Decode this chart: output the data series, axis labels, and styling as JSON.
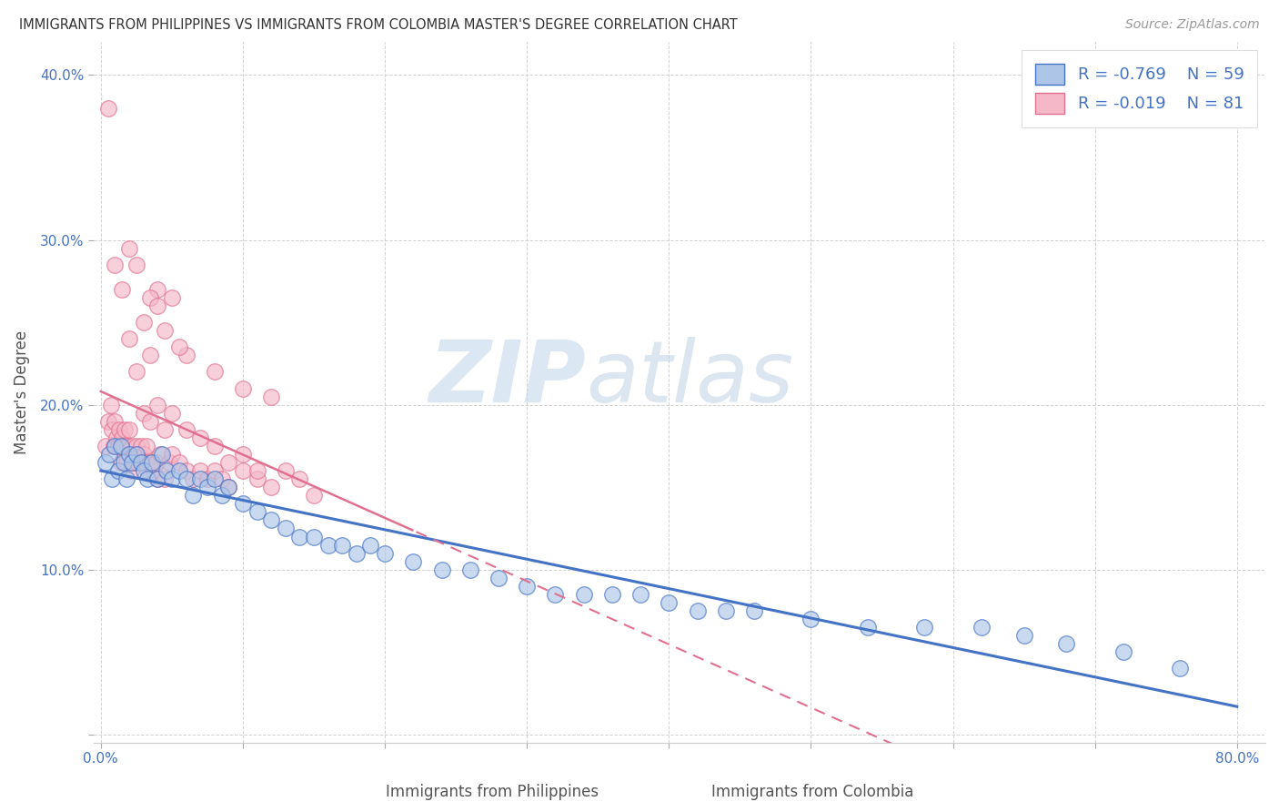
{
  "title": "IMMIGRANTS FROM PHILIPPINES VS IMMIGRANTS FROM COLOMBIA MASTER'S DEGREE CORRELATION CHART",
  "source": "Source: ZipAtlas.com",
  "xlabel_philippines": "Immigrants from Philippines",
  "xlabel_colombia": "Immigrants from Colombia",
  "ylabel": "Master's Degree",
  "xlim": [
    -0.005,
    0.82
  ],
  "ylim": [
    -0.005,
    0.42
  ],
  "xticks": [
    0.0,
    0.1,
    0.2,
    0.3,
    0.4,
    0.5,
    0.6,
    0.7,
    0.8
  ],
  "yticks": [
    0.0,
    0.1,
    0.2,
    0.3,
    0.4
  ],
  "ytick_labels": [
    "",
    "10.0%",
    "20.0%",
    "30.0%",
    "40.0%"
  ],
  "xtick_labels": [
    "0.0%",
    "",
    "",
    "",
    "",
    "",
    "",
    "",
    "80.0%"
  ],
  "legend_R1": "-0.769",
  "legend_N1": "59",
  "legend_R2": "-0.019",
  "legend_N2": "81",
  "color_philippines": "#adc6e8",
  "color_colombia": "#f4b8c8",
  "color_line_philippines": "#4472c4",
  "color_line_colombia": "#e07090",
  "watermark_zip": "ZIP",
  "watermark_atlas": "atlas",
  "philippines_x": [
    0.003,
    0.006,
    0.008,
    0.01,
    0.012,
    0.014,
    0.016,
    0.018,
    0.02,
    0.022,
    0.025,
    0.028,
    0.03,
    0.033,
    0.036,
    0.04,
    0.043,
    0.046,
    0.05,
    0.055,
    0.06,
    0.065,
    0.07,
    0.075,
    0.08,
    0.085,
    0.09,
    0.1,
    0.11,
    0.12,
    0.13,
    0.14,
    0.15,
    0.16,
    0.17,
    0.18,
    0.19,
    0.2,
    0.22,
    0.24,
    0.26,
    0.28,
    0.3,
    0.32,
    0.34,
    0.36,
    0.38,
    0.4,
    0.42,
    0.44,
    0.46,
    0.5,
    0.54,
    0.58,
    0.62,
    0.65,
    0.68,
    0.72,
    0.76
  ],
  "philippines_y": [
    0.165,
    0.17,
    0.155,
    0.175,
    0.16,
    0.175,
    0.165,
    0.155,
    0.17,
    0.165,
    0.17,
    0.165,
    0.16,
    0.155,
    0.165,
    0.155,
    0.17,
    0.16,
    0.155,
    0.16,
    0.155,
    0.145,
    0.155,
    0.15,
    0.155,
    0.145,
    0.15,
    0.14,
    0.135,
    0.13,
    0.125,
    0.12,
    0.12,
    0.115,
    0.115,
    0.11,
    0.115,
    0.11,
    0.105,
    0.1,
    0.1,
    0.095,
    0.09,
    0.085,
    0.085,
    0.085,
    0.085,
    0.08,
    0.075,
    0.075,
    0.075,
    0.07,
    0.065,
    0.065,
    0.065,
    0.06,
    0.055,
    0.05,
    0.04
  ],
  "colombia_x": [
    0.003,
    0.005,
    0.007,
    0.008,
    0.009,
    0.01,
    0.011,
    0.012,
    0.013,
    0.014,
    0.015,
    0.016,
    0.017,
    0.018,
    0.019,
    0.02,
    0.021,
    0.022,
    0.023,
    0.024,
    0.025,
    0.026,
    0.027,
    0.028,
    0.029,
    0.03,
    0.031,
    0.032,
    0.033,
    0.035,
    0.037,
    0.039,
    0.04,
    0.042,
    0.045,
    0.048,
    0.05,
    0.055,
    0.06,
    0.065,
    0.07,
    0.075,
    0.08,
    0.085,
    0.09,
    0.1,
    0.11,
    0.12,
    0.13,
    0.14,
    0.15,
    0.02,
    0.025,
    0.03,
    0.035,
    0.04,
    0.06,
    0.08,
    0.1,
    0.12,
    0.035,
    0.04,
    0.045,
    0.05,
    0.055,
    0.02,
    0.025,
    0.015,
    0.01,
    0.005,
    0.03,
    0.035,
    0.04,
    0.045,
    0.05,
    0.06,
    0.07,
    0.08,
    0.09,
    0.1,
    0.11
  ],
  "colombia_y": [
    0.175,
    0.19,
    0.2,
    0.185,
    0.175,
    0.19,
    0.18,
    0.175,
    0.185,
    0.165,
    0.18,
    0.175,
    0.185,
    0.165,
    0.175,
    0.185,
    0.16,
    0.175,
    0.165,
    0.17,
    0.175,
    0.165,
    0.17,
    0.175,
    0.165,
    0.17,
    0.165,
    0.175,
    0.16,
    0.165,
    0.16,
    0.165,
    0.155,
    0.17,
    0.155,
    0.165,
    0.17,
    0.165,
    0.16,
    0.155,
    0.16,
    0.155,
    0.16,
    0.155,
    0.15,
    0.16,
    0.155,
    0.15,
    0.16,
    0.155,
    0.145,
    0.24,
    0.22,
    0.25,
    0.23,
    0.27,
    0.23,
    0.22,
    0.21,
    0.205,
    0.265,
    0.26,
    0.245,
    0.265,
    0.235,
    0.295,
    0.285,
    0.27,
    0.285,
    0.38,
    0.195,
    0.19,
    0.2,
    0.185,
    0.195,
    0.185,
    0.18,
    0.175,
    0.165,
    0.17,
    0.16
  ]
}
